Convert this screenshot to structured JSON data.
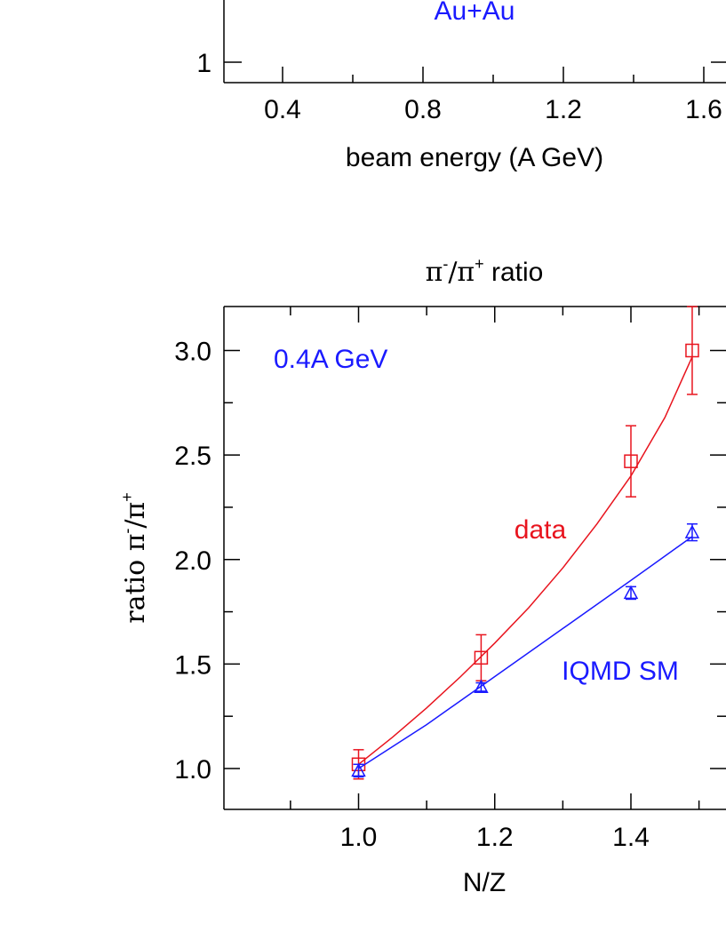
{
  "top_chart": {
    "annotation": "Au+Au",
    "annotation_color": "#1a1aff",
    "y_visible_tick": "1",
    "xlabel": "beam energy (A GeV)",
    "x_ticks": [
      "0.4",
      "0.8",
      "1.2",
      "1.6"
    ]
  },
  "chart_data": {
    "type": "scatter",
    "title_parts": {
      "base": "π",
      "sup1": "-",
      "mid": "/π",
      "sup2": "+",
      "tail": " ratio"
    },
    "xlabel": "N/Z",
    "ylabel_parts": {
      "base": "ratio π",
      "sup1": "-",
      "mid": "/π",
      "sup2": "+"
    },
    "xlim": [
      0.8,
      1.55
    ],
    "ylim": [
      0.8,
      3.2
    ],
    "x_ticks": [
      1.0,
      1.2,
      1.4
    ],
    "x_tick_labels": [
      "1.0",
      "1.2",
      "1.4"
    ],
    "y_ticks": [
      1.0,
      1.5,
      2.0,
      2.5,
      3.0
    ],
    "y_tick_labels": [
      "1.0",
      "1.5",
      "2.0",
      "2.5",
      "3.0"
    ],
    "energy_label": "0.4A GeV",
    "series": [
      {
        "name": "data",
        "color": "#e8141e",
        "marker": "square",
        "x": [
          1.0,
          1.18,
          1.4,
          1.49
        ],
        "y": [
          1.02,
          1.53,
          2.47,
          3.0
        ],
        "err": [
          0.07,
          0.11,
          0.17,
          0.21
        ],
        "fit": [
          [
            1.0,
            1.02
          ],
          [
            1.05,
            1.15
          ],
          [
            1.1,
            1.29
          ],
          [
            1.15,
            1.44
          ],
          [
            1.2,
            1.6
          ],
          [
            1.25,
            1.77
          ],
          [
            1.3,
            1.96
          ],
          [
            1.35,
            2.17
          ],
          [
            1.4,
            2.4
          ],
          [
            1.45,
            2.68
          ],
          [
            1.49,
            2.97
          ]
        ]
      },
      {
        "name": "IQMD SM",
        "color": "#1a1aff",
        "marker": "triangle",
        "x": [
          1.0,
          1.18,
          1.4,
          1.49
        ],
        "y": [
          0.99,
          1.39,
          1.84,
          2.13
        ],
        "err": [
          0.03,
          0.02,
          0.03,
          0.04
        ],
        "fit": [
          [
            1.0,
            1.0
          ],
          [
            1.1,
            1.21
          ],
          [
            1.2,
            1.44
          ],
          [
            1.3,
            1.67
          ],
          [
            1.4,
            1.9
          ],
          [
            1.49,
            2.11
          ]
        ]
      }
    ]
  }
}
